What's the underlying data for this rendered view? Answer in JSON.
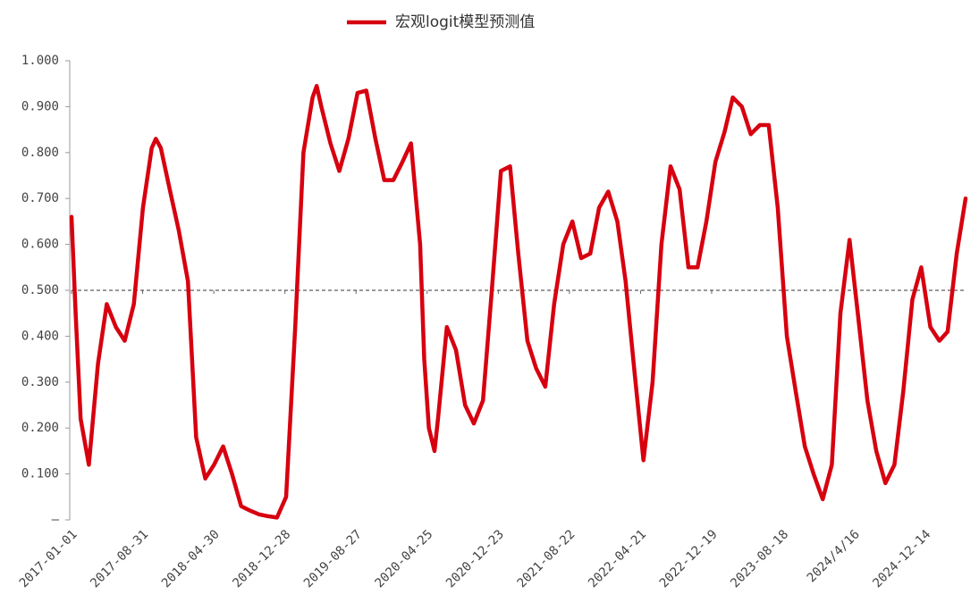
{
  "chart_data": {
    "type": "line",
    "series": [
      {
        "name": "宏观logit模型预测值",
        "color": "#d7000f",
        "x": [
          "2017-01-01",
          "2017-01-15",
          "2017-02-01",
          "2017-03-01",
          "2017-04-01",
          "2017-05-01",
          "2017-06-01",
          "2017-07-01",
          "2017-08-01",
          "2017-09-01",
          "2017-10-01",
          "2017-10-15",
          "2017-11-01",
          "2017-12-01",
          "2018-01-01",
          "2018-02-01",
          "2018-03-01",
          "2018-04-01",
          "2018-05-01",
          "2018-06-01",
          "2018-07-01",
          "2018-08-01",
          "2018-09-01",
          "2018-10-01",
          "2018-11-01",
          "2018-12-01",
          "2019-01-01",
          "2019-02-01",
          "2019-03-01",
          "2019-04-01",
          "2019-04-15",
          "2019-05-01",
          "2019-06-01",
          "2019-07-01",
          "2019-08-01",
          "2019-09-01",
          "2019-10-01",
          "2019-11-01",
          "2019-12-01",
          "2020-01-01",
          "2020-02-01",
          "2020-03-01",
          "2020-04-01",
          "2020-04-15",
          "2020-05-01",
          "2020-05-20",
          "2020-06-01",
          "2020-07-01",
          "2020-08-01",
          "2020-09-01",
          "2020-10-01",
          "2020-11-01",
          "2020-12-01",
          "2021-01-01",
          "2021-02-01",
          "2021-03-01",
          "2021-04-01",
          "2021-05-01",
          "2021-06-01",
          "2021-07-01",
          "2021-08-01",
          "2021-09-01",
          "2021-10-01",
          "2021-11-01",
          "2021-12-01",
          "2022-01-01",
          "2022-02-01",
          "2022-03-01",
          "2022-04-01",
          "2022-05-01",
          "2022-06-01",
          "2022-07-01",
          "2022-08-01",
          "2022-09-01",
          "2022-10-01",
          "2022-11-01",
          "2022-12-01",
          "2023-01-01",
          "2023-02-01",
          "2023-03-01",
          "2023-04-01",
          "2023-05-01",
          "2023-06-01",
          "2023-07-01",
          "2023-08-01",
          "2023-09-01",
          "2023-10-01",
          "2023-11-01",
          "2023-12-01",
          "2024-01-01",
          "2024-02-01",
          "2024-03-01",
          "2024-04-01",
          "2024-05-01",
          "2024-06-01",
          "2024-07-01",
          "2024-08-01",
          "2024-09-01",
          "2024-10-01",
          "2024-11-01",
          "2024-12-01",
          "2025-01-01",
          "2025-02-01",
          "2025-03-01",
          "2025-04-01",
          "2025-05-01"
        ],
        "values": [
          0.66,
          0.45,
          0.22,
          0.12,
          0.34,
          0.47,
          0.42,
          0.39,
          0.47,
          0.68,
          0.81,
          0.83,
          0.81,
          0.72,
          0.63,
          0.52,
          0.18,
          0.09,
          0.12,
          0.16,
          0.1,
          0.03,
          0.02,
          0.012,
          0.008,
          0.005,
          0.05,
          0.42,
          0.8,
          0.92,
          0.945,
          0.9,
          0.82,
          0.76,
          0.83,
          0.93,
          0.935,
          0.83,
          0.74,
          0.74,
          0.78,
          0.82,
          0.6,
          0.35,
          0.2,
          0.15,
          0.22,
          0.42,
          0.37,
          0.25,
          0.21,
          0.26,
          0.5,
          0.76,
          0.77,
          0.58,
          0.39,
          0.33,
          0.29,
          0.47,
          0.6,
          0.65,
          0.57,
          0.58,
          0.68,
          0.715,
          0.65,
          0.52,
          0.32,
          0.13,
          0.3,
          0.6,
          0.77,
          0.72,
          0.55,
          0.55,
          0.65,
          0.78,
          0.845,
          0.92,
          0.9,
          0.84,
          0.86,
          0.86,
          0.68,
          0.4,
          0.28,
          0.16,
          0.1,
          0.045,
          0.12,
          0.45,
          0.61,
          0.44,
          0.26,
          0.15,
          0.08,
          0.12,
          0.28,
          0.48,
          0.55,
          0.42,
          0.39,
          0.41,
          0.58,
          0.7
        ]
      }
    ],
    "xlim": [
      "2017-01-01",
      "2025-05-01"
    ],
    "xticks": [
      "2017-01-01",
      "2017-08-31",
      "2018-04-30",
      "2018-12-28",
      "2019-08-27",
      "2020-04-25",
      "2020-12-23",
      "2021-08-22",
      "2022-04-21",
      "2022-12-19",
      "2023-08-18",
      {
        "value": "2024-04-16",
        "label": "2024/4/16"
      },
      "2024-12-14"
    ],
    "ylim": [
      0,
      1
    ],
    "yticks": [
      {
        "value": 0,
        "label": "–"
      },
      {
        "value": 0.1,
        "label": "0.100"
      },
      {
        "value": 0.2,
        "label": "0.200"
      },
      {
        "value": 0.3,
        "label": "0.300"
      },
      {
        "value": 0.4,
        "label": "0.400"
      },
      {
        "value": 0.5,
        "label": "0.500"
      },
      {
        "value": 0.6,
        "label": "0.600"
      },
      {
        "value": 0.7,
        "label": "0.700"
      },
      {
        "value": 0.8,
        "label": "0.800"
      },
      {
        "value": 0.9,
        "label": "0.900"
      },
      {
        "value": 1,
        "label": "1.000"
      }
    ],
    "hline": 0.5,
    "legend": "top"
  }
}
